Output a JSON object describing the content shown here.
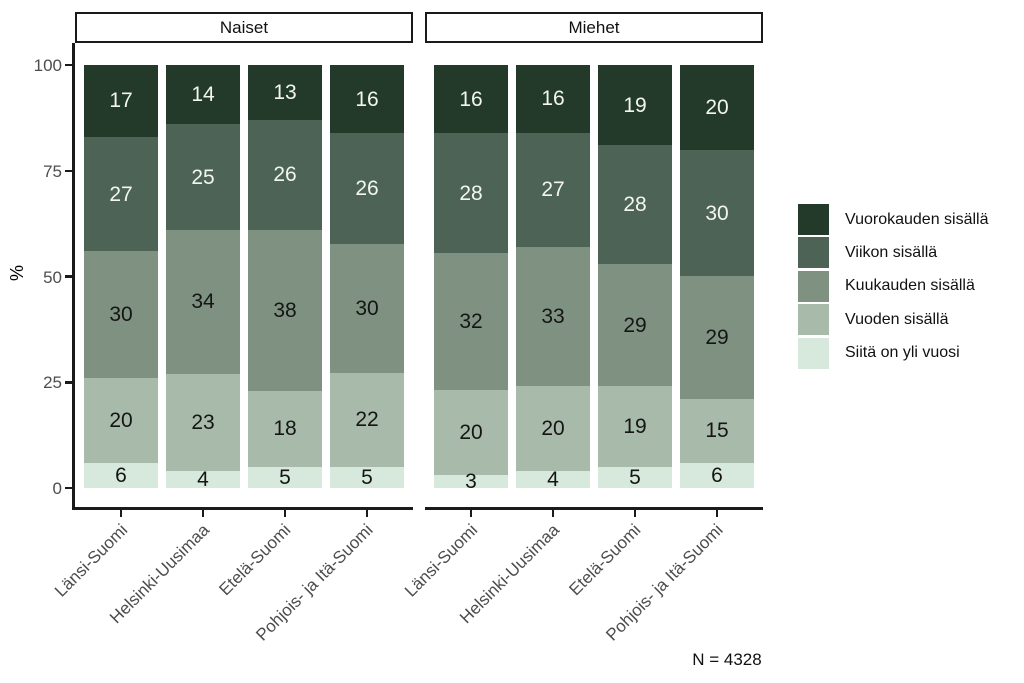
{
  "chart_data": {
    "type": "bar",
    "subtype": "stacked-percent",
    "ylabel": "%",
    "ylim": [
      0,
      100
    ],
    "y_ticks": [
      0,
      25,
      50,
      75,
      100
    ],
    "grid": false,
    "legend_position": "right",
    "categories": [
      "Länsi-Suomi",
      "Helsinki-Uusimaa",
      "Etelä-Suomi",
      "Pohjois- ja Itä-Suomi"
    ],
    "segments": [
      "Vuorokauden sisällä",
      "Viikon sisällä",
      "Kuukauden sisällä",
      "Vuoden sisällä",
      "Siitä on yli vuosi"
    ],
    "segment_colors": [
      "#233a2b",
      "#4d6355",
      "#7f9282",
      "#a8baaa",
      "#d7e9dc"
    ],
    "value_label_colors": {
      "on_dark": "#f2f6ee",
      "on_light": "#151515"
    },
    "facets": [
      {
        "name": "Naiset",
        "values": [
          [
            17,
            27,
            30,
            20,
            6
          ],
          [
            14,
            25,
            34,
            23,
            4
          ],
          [
            13,
            26,
            38,
            18,
            5
          ],
          [
            16,
            26,
            30,
            22,
            5
          ]
        ]
      },
      {
        "name": "Miehet",
        "values": [
          [
            16,
            28,
            32,
            20,
            3
          ],
          [
            16,
            27,
            33,
            20,
            4
          ],
          [
            19,
            28,
            29,
            19,
            5
          ],
          [
            20,
            30,
            29,
            15,
            6
          ]
        ]
      }
    ],
    "note": "N = 4328"
  },
  "legend": [
    {
      "label": "Vuorokauden sisällä",
      "color": "#233a2b"
    },
    {
      "label": "Viikon sisällä",
      "color": "#4d6355"
    },
    {
      "label": "Kuukauden sisällä",
      "color": "#7f9282"
    },
    {
      "label": "Vuoden sisällä",
      "color": "#a8baaa"
    },
    {
      "label": "Siitä on yli vuosi",
      "color": "#d7e9dc"
    }
  ]
}
